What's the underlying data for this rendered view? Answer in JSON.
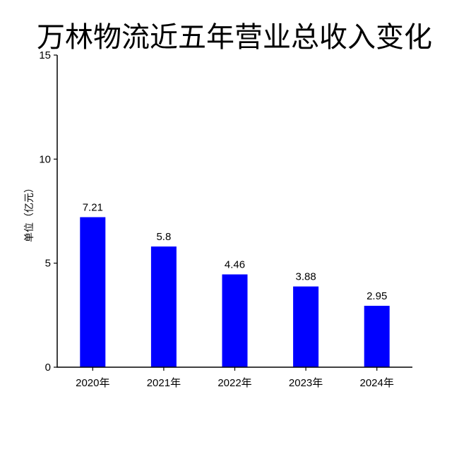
{
  "chart_data": {
    "type": "bar",
    "title": "万林物流近五年营业总收入变化",
    "ylabel": "单位（亿元）",
    "xlabel": "",
    "categories": [
      "2020年",
      "2021年",
      "2022年",
      "2023年",
      "2024年"
    ],
    "values": [
      7.21,
      5.8,
      4.46,
      3.88,
      2.95
    ],
    "value_labels": [
      "7.21",
      "5.8",
      "4.46",
      "3.88",
      "2.95"
    ],
    "ylim": [
      0,
      15
    ],
    "yticks": [
      0,
      5,
      10,
      15
    ],
    "ytick_labels": [
      "0",
      "5",
      "10",
      "15"
    ],
    "bar_color": "#0000ff",
    "grid": false,
    "legend": "none"
  }
}
